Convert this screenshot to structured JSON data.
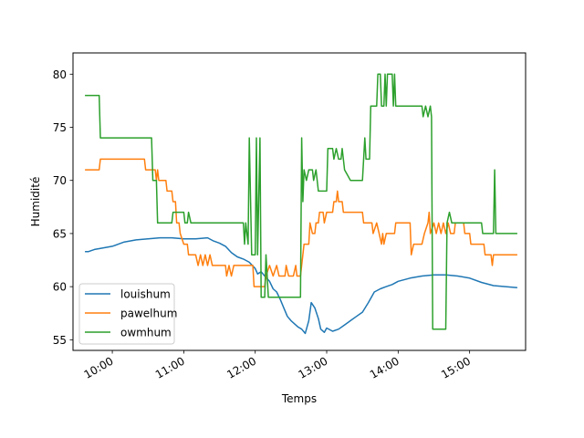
{
  "chart_data": {
    "type": "line",
    "xlabel": "Temps",
    "ylabel": "Humidité",
    "x_unit": "time",
    "xlim": [
      "09:27",
      "15:47"
    ],
    "ylim": [
      54,
      82
    ],
    "x_ticks": [
      "10:00",
      "11:00",
      "12:00",
      "13:00",
      "14:00",
      "15:00"
    ],
    "y_ticks": [
      55,
      60,
      65,
      70,
      75,
      80
    ],
    "legend": {
      "placement": "lower-left",
      "entries": [
        "louishum",
        "pawelhum",
        "owmhum"
      ]
    },
    "grid": false,
    "series": [
      {
        "name": "louishum",
        "color": "#1f77b4",
        "points": [
          [
            "09:37",
            63.3
          ],
          [
            "09:40",
            63.3
          ],
          [
            "09:45",
            63.5
          ],
          [
            "09:50",
            63.6
          ],
          [
            "10:00",
            63.8
          ],
          [
            "10:05",
            64.0
          ],
          [
            "10:10",
            64.2
          ],
          [
            "10:20",
            64.4
          ],
          [
            "10:30",
            64.5
          ],
          [
            "10:40",
            64.6
          ],
          [
            "10:50",
            64.6
          ],
          [
            "11:00",
            64.5
          ],
          [
            "11:10",
            64.5
          ],
          [
            "11:20",
            64.6
          ],
          [
            "11:25",
            64.3
          ],
          [
            "11:30",
            64.1
          ],
          [
            "11:35",
            63.8
          ],
          [
            "11:40",
            63.2
          ],
          [
            "11:45",
            62.8
          ],
          [
            "11:50",
            62.6
          ],
          [
            "11:55",
            62.3
          ],
          [
            "12:00",
            61.7
          ],
          [
            "12:02",
            61.2
          ],
          [
            "12:05",
            61.4
          ],
          [
            "12:08",
            61.0
          ],
          [
            "12:12",
            60.5
          ],
          [
            "12:15",
            59.8
          ],
          [
            "12:18",
            59.5
          ],
          [
            "12:21",
            58.8
          ],
          [
            "12:24",
            58.0
          ],
          [
            "12:27",
            57.2
          ],
          [
            "12:30",
            56.8
          ],
          [
            "12:33",
            56.5
          ],
          [
            "12:36",
            56.2
          ],
          [
            "12:39",
            56.0
          ],
          [
            "12:42",
            55.6
          ],
          [
            "12:45",
            56.8
          ],
          [
            "12:47",
            58.5
          ],
          [
            "12:50",
            58.0
          ],
          [
            "12:53",
            57.0
          ],
          [
            "12:55",
            56.0
          ],
          [
            "12:58",
            55.7
          ],
          [
            "13:00",
            56.1
          ],
          [
            "13:05",
            55.8
          ],
          [
            "13:10",
            56.0
          ],
          [
            "13:15",
            56.4
          ],
          [
            "13:20",
            56.8
          ],
          [
            "13:25",
            57.2
          ],
          [
            "13:30",
            57.6
          ],
          [
            "13:35",
            58.5
          ],
          [
            "13:40",
            59.5
          ],
          [
            "13:45",
            59.8
          ],
          [
            "13:50",
            60.0
          ],
          [
            "13:55",
            60.2
          ],
          [
            "14:00",
            60.5
          ],
          [
            "14:10",
            60.8
          ],
          [
            "14:20",
            61.0
          ],
          [
            "14:30",
            61.1
          ],
          [
            "14:40",
            61.1
          ],
          [
            "14:50",
            61.0
          ],
          [
            "15:00",
            60.8
          ],
          [
            "15:10",
            60.4
          ],
          [
            "15:20",
            60.1
          ],
          [
            "15:30",
            60.0
          ],
          [
            "15:40",
            59.9
          ]
        ]
      },
      {
        "name": "pawelhum",
        "color": "#ff7f0e",
        "points": [
          [
            "09:37",
            71
          ],
          [
            "09:49",
            71
          ],
          [
            "09:50",
            72
          ],
          [
            "10:27",
            72
          ],
          [
            "10:28",
            71
          ],
          [
            "10:36",
            71
          ],
          [
            "10:37",
            70
          ],
          [
            "10:38",
            71
          ],
          [
            "10:39",
            70
          ],
          [
            "10:45",
            70
          ],
          [
            "10:46",
            69
          ],
          [
            "10:50",
            69
          ],
          [
            "10:51",
            68
          ],
          [
            "10:53",
            68
          ],
          [
            "10:54",
            66
          ],
          [
            "10:56",
            66
          ],
          [
            "10:57",
            65
          ],
          [
            "11:00",
            64
          ],
          [
            "11:03",
            64
          ],
          [
            "11:04",
            63
          ],
          [
            "11:10",
            63
          ],
          [
            "11:12",
            62
          ],
          [
            "11:14",
            63
          ],
          [
            "11:16",
            62
          ],
          [
            "11:18",
            63
          ],
          [
            "11:20",
            62
          ],
          [
            "11:22",
            63
          ],
          [
            "11:24",
            62
          ],
          [
            "11:35",
            62
          ],
          [
            "11:36",
            61
          ],
          [
            "11:38",
            62
          ],
          [
            "11:40",
            61
          ],
          [
            "11:42",
            62
          ],
          [
            "11:58",
            62
          ],
          [
            "11:59",
            60
          ],
          [
            "12:08",
            60
          ],
          [
            "12:09",
            61
          ],
          [
            "12:12",
            62
          ],
          [
            "12:15",
            61
          ],
          [
            "12:18",
            62
          ],
          [
            "12:20",
            61
          ],
          [
            "12:25",
            61
          ],
          [
            "12:26",
            62
          ],
          [
            "12:28",
            61
          ],
          [
            "12:32",
            61
          ],
          [
            "12:34",
            62
          ],
          [
            "12:35",
            61
          ],
          [
            "12:38",
            61
          ],
          [
            "12:40",
            63
          ],
          [
            "12:41",
            64
          ],
          [
            "12:45",
            64
          ],
          [
            "12:46",
            66
          ],
          [
            "12:48",
            65
          ],
          [
            "12:50",
            65
          ],
          [
            "12:51",
            66
          ],
          [
            "12:53",
            66
          ],
          [
            "12:54",
            67
          ],
          [
            "12:57",
            67
          ],
          [
            "12:58",
            66
          ],
          [
            "13:00",
            67
          ],
          [
            "13:05",
            67
          ],
          [
            "13:06",
            68
          ],
          [
            "13:08",
            68
          ],
          [
            "13:09",
            69
          ],
          [
            "13:10",
            68
          ],
          [
            "13:13",
            68
          ],
          [
            "13:14",
            67
          ],
          [
            "13:30",
            67
          ],
          [
            "13:31",
            66
          ],
          [
            "13:38",
            66
          ],
          [
            "13:39",
            65
          ],
          [
            "13:42",
            66
          ],
          [
            "13:44",
            65
          ],
          [
            "13:46",
            64
          ],
          [
            "13:47",
            65
          ],
          [
            "13:48",
            64
          ],
          [
            "13:50",
            65
          ],
          [
            "13:57",
            65
          ],
          [
            "13:58",
            66
          ],
          [
            "14:10",
            66
          ],
          [
            "14:11",
            63
          ],
          [
            "14:13",
            64
          ],
          [
            "14:20",
            64
          ],
          [
            "14:22",
            65
          ],
          [
            "14:25",
            66
          ],
          [
            "14:26",
            67
          ],
          [
            "14:27",
            65
          ],
          [
            "14:30",
            66
          ],
          [
            "14:32",
            65
          ],
          [
            "14:34",
            66
          ],
          [
            "14:36",
            65
          ],
          [
            "14:38",
            66
          ],
          [
            "14:40",
            65
          ],
          [
            "14:42",
            66
          ],
          [
            "14:44",
            65
          ],
          [
            "14:47",
            65
          ],
          [
            "14:48",
            66
          ],
          [
            "14:55",
            66
          ],
          [
            "14:56",
            65
          ],
          [
            "15:00",
            65
          ],
          [
            "15:01",
            64
          ],
          [
            "15:12",
            64
          ],
          [
            "15:13",
            63
          ],
          [
            "15:18",
            63
          ],
          [
            "15:19",
            62
          ],
          [
            "15:20",
            63
          ],
          [
            "15:40",
            63
          ]
        ]
      },
      {
        "name": "owmhum",
        "color": "#2ca02c",
        "points": [
          [
            "09:37",
            78
          ],
          [
            "09:49",
            78
          ],
          [
            "09:50",
            74
          ],
          [
            "10:33",
            74
          ],
          [
            "10:34",
            70
          ],
          [
            "10:37",
            70
          ],
          [
            "10:38",
            66
          ],
          [
            "10:50",
            66
          ],
          [
            "10:51",
            67
          ],
          [
            "11:00",
            67
          ],
          [
            "11:01",
            66
          ],
          [
            "11:03",
            66
          ],
          [
            "11:04",
            67
          ],
          [
            "11:06",
            66
          ],
          [
            "11:50",
            66
          ],
          [
            "11:51",
            64
          ],
          [
            "11:52",
            66
          ],
          [
            "11:54",
            64
          ],
          [
            "11:55",
            74
          ],
          [
            "11:57",
            63
          ],
          [
            "12:00",
            63
          ],
          [
            "12:01",
            74
          ],
          [
            "12:02",
            63
          ],
          [
            "12:04",
            74
          ],
          [
            "12:05",
            59
          ],
          [
            "12:08",
            59
          ],
          [
            "12:09",
            63
          ],
          [
            "12:11",
            59
          ],
          [
            "12:38",
            59
          ],
          [
            "12:39",
            74
          ],
          [
            "12:40",
            68
          ],
          [
            "12:41",
            71
          ],
          [
            "12:43",
            70
          ],
          [
            "12:45",
            71
          ],
          [
            "12:48",
            71
          ],
          [
            "12:49",
            70
          ],
          [
            "12:51",
            71
          ],
          [
            "12:53",
            69
          ],
          [
            "13:00",
            69
          ],
          [
            "13:01",
            73
          ],
          [
            "13:05",
            73
          ],
          [
            "13:06",
            72
          ],
          [
            "13:08",
            73
          ],
          [
            "13:10",
            72
          ],
          [
            "13:12",
            72
          ],
          [
            "13:13",
            73
          ],
          [
            "13:15",
            71
          ],
          [
            "13:20",
            70
          ],
          [
            "13:30",
            70
          ],
          [
            "13:31",
            72
          ],
          [
            "13:32",
            74
          ],
          [
            "13:33",
            72
          ],
          [
            "13:36",
            72
          ],
          [
            "13:37",
            77
          ],
          [
            "13:42",
            77
          ],
          [
            "13:43",
            80
          ],
          [
            "13:45",
            80
          ],
          [
            "13:46",
            77
          ],
          [
            "13:48",
            77
          ],
          [
            "13:49",
            80
          ],
          [
            "13:50",
            77
          ],
          [
            "13:51",
            80
          ],
          [
            "13:55",
            80
          ],
          [
            "13:56",
            77
          ],
          [
            "13:57",
            80
          ],
          [
            "13:58",
            77
          ],
          [
            "14:20",
            77
          ],
          [
            "14:21",
            76
          ],
          [
            "14:23",
            77
          ],
          [
            "14:25",
            76
          ],
          [
            "14:27",
            77
          ],
          [
            "14:28",
            76
          ],
          [
            "14:29",
            56
          ],
          [
            "14:40",
            56
          ],
          [
            "14:41",
            66
          ],
          [
            "14:43",
            67
          ],
          [
            "14:45",
            66
          ],
          [
            "15:10",
            66
          ],
          [
            "15:11",
            65
          ],
          [
            "15:20",
            65
          ],
          [
            "15:21",
            71
          ],
          [
            "15:22",
            65
          ],
          [
            "15:40",
            65
          ]
        ]
      }
    ]
  }
}
